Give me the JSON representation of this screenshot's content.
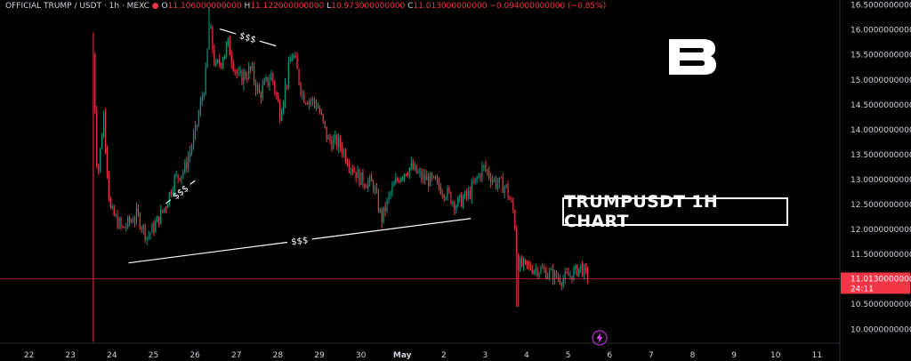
{
  "header": {
    "symbol": "OFFICIAL TRUMP / USDT · 1h · MEXC",
    "o_key": "O",
    "o_val": "11.106000000000",
    "h_key": "H",
    "h_val": "11.122000000000",
    "l_key": "L",
    "l_val": "10.973000000000",
    "c_key": "C",
    "c_val": "11.013000000000",
    "change": "−0.094000000000 (−0.85%)"
  },
  "annotation_title": "TRUMPUSDT 1H CHART",
  "colors": {
    "up": "#089981",
    "down": "#f23645",
    "bg": "#000000",
    "text": "#d1d4dc"
  },
  "chart_data": {
    "type": "candlestick",
    "y_ticks": [
      "16.500000000000",
      "16.000000000000",
      "15.500000000000",
      "15.000000000000",
      "14.500000000000",
      "14.000000000000",
      "13.500000000000",
      "13.000000000000",
      "12.500000000000",
      "12.000000000000",
      "11.500000000000",
      "11.000000000000",
      "10.500000000000",
      "10.000000000000"
    ],
    "y_tick_values": [
      16.5,
      16.0,
      15.5,
      15.0,
      14.5,
      14.0,
      13.5,
      13.0,
      12.5,
      12.0,
      11.5,
      11.0,
      10.5,
      10.0
    ],
    "ylim": [
      9.72,
      16.6
    ],
    "x_ticks": [
      "22",
      "23",
      "24",
      "25",
      "26",
      "27",
      "28",
      "29",
      "30",
      "May",
      "2",
      "3",
      "4",
      "5",
      "6",
      "7",
      "8",
      "9",
      "10",
      "11"
    ],
    "x_tick_days": [
      22,
      23,
      24,
      25,
      26,
      27,
      28,
      29,
      30,
      31,
      32,
      33,
      34,
      35,
      36,
      37,
      38,
      39,
      40,
      41
    ],
    "xlim": [
      21.3,
      41.55
    ],
    "last_price": {
      "label": "11.013000000000",
      "value": 11.013,
      "countdown": "24:11"
    },
    "anchors": [
      {
        "t": 23.55,
        "p": 15.5
      },
      {
        "t": 23.65,
        "p": 13.0
      },
      {
        "t": 23.8,
        "p": 14.3
      },
      {
        "t": 23.95,
        "p": 12.4
      },
      {
        "t": 24.25,
        "p": 12.0
      },
      {
        "t": 24.6,
        "p": 12.3
      },
      {
        "t": 24.85,
        "p": 11.85
      },
      {
        "t": 25.05,
        "p": 12.1
      },
      {
        "t": 25.3,
        "p": 12.5
      },
      {
        "t": 25.5,
        "p": 13.0
      },
      {
        "t": 25.75,
        "p": 13.2
      },
      {
        "t": 26.0,
        "p": 13.9
      },
      {
        "t": 26.25,
        "p": 15.0
      },
      {
        "t": 26.35,
        "p": 16.1
      },
      {
        "t": 26.5,
        "p": 15.2
      },
      {
        "t": 26.8,
        "p": 15.7
      },
      {
        "t": 27.05,
        "p": 15.0
      },
      {
        "t": 27.35,
        "p": 15.2
      },
      {
        "t": 27.55,
        "p": 14.7
      },
      {
        "t": 27.85,
        "p": 15.1
      },
      {
        "t": 28.05,
        "p": 14.35
      },
      {
        "t": 28.35,
        "p": 15.55
      },
      {
        "t": 28.6,
        "p": 14.7
      },
      {
        "t": 28.95,
        "p": 14.5
      },
      {
        "t": 29.2,
        "p": 13.8
      },
      {
        "t": 29.5,
        "p": 13.7
      },
      {
        "t": 29.75,
        "p": 13.3
      },
      {
        "t": 30.0,
        "p": 13.0
      },
      {
        "t": 30.3,
        "p": 12.9
      },
      {
        "t": 30.5,
        "p": 12.2
      },
      {
        "t": 30.7,
        "p": 12.7
      },
      {
        "t": 30.95,
        "p": 13.1
      },
      {
        "t": 31.2,
        "p": 13.25
      },
      {
        "t": 31.45,
        "p": 13.05
      },
      {
        "t": 31.75,
        "p": 12.95
      },
      {
        "t": 32.05,
        "p": 12.75
      },
      {
        "t": 32.3,
        "p": 12.5
      },
      {
        "t": 32.6,
        "p": 12.7
      },
      {
        "t": 32.95,
        "p": 13.25
      },
      {
        "t": 33.25,
        "p": 12.95
      },
      {
        "t": 33.5,
        "p": 12.85
      },
      {
        "t": 33.7,
        "p": 12.3
      },
      {
        "t": 33.78,
        "p": 11.3
      },
      {
        "t": 34.0,
        "p": 11.25
      },
      {
        "t": 34.3,
        "p": 11.2
      },
      {
        "t": 34.6,
        "p": 11.1
      },
      {
        "t": 34.85,
        "p": 11.0
      },
      {
        "t": 35.1,
        "p": 11.1
      },
      {
        "t": 35.3,
        "p": 11.25
      },
      {
        "t": 35.48,
        "p": 11.013
      }
    ],
    "trendlines": [
      {
        "label": "$$$",
        "t1": 24.4,
        "p1": 11.33,
        "t2": 32.65,
        "p2": 12.22
      },
      {
        "label": "$$$",
        "t1": 26.6,
        "p1": 16.02,
        "t2": 27.95,
        "p2": 15.68
      },
      {
        "label": "$$$",
        "t1": 25.3,
        "p1": 12.52,
        "t2": 26.0,
        "p2": 12.98
      }
    ]
  }
}
